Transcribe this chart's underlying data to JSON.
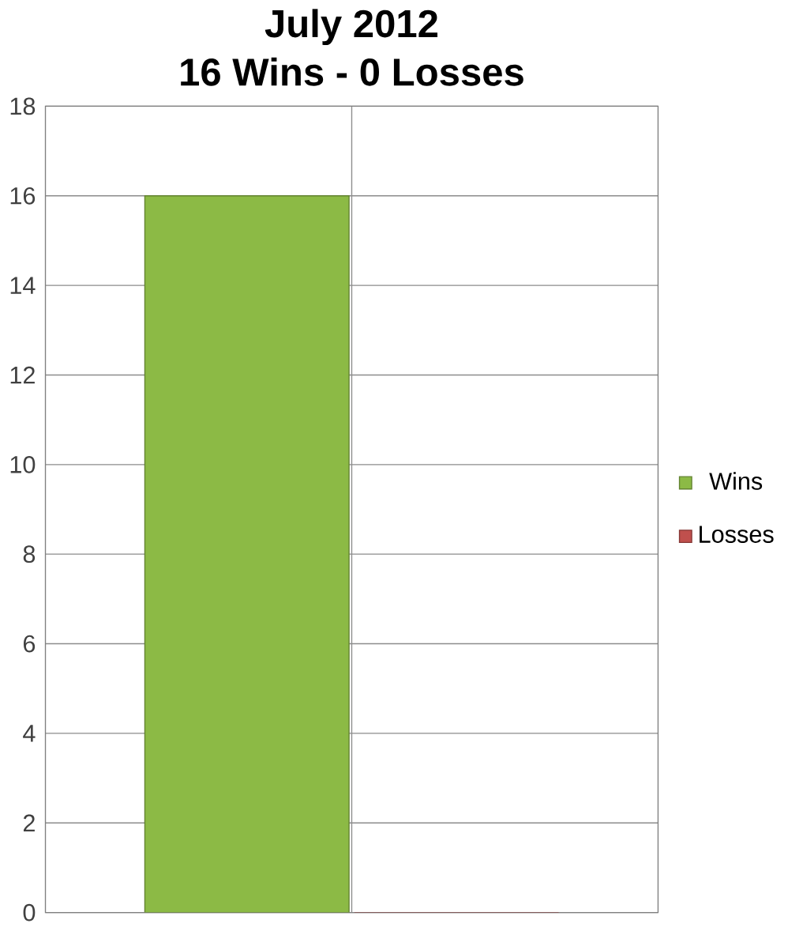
{
  "chart_data": {
    "type": "bar",
    "title": "July 2012",
    "subtitle": "16 Wins - 0 Losses",
    "categories": [
      null
    ],
    "series": [
      {
        "name": "Wins",
        "color": "#8cba45",
        "values": [
          16
        ]
      },
      {
        "name": "Losses",
        "color": "#c0504d",
        "values": [
          0
        ]
      }
    ],
    "ylim": [
      0,
      18
    ],
    "yticks": [
      0,
      2,
      4,
      6,
      8,
      10,
      12,
      14,
      16,
      18
    ],
    "grid": true,
    "legend": "right"
  }
}
